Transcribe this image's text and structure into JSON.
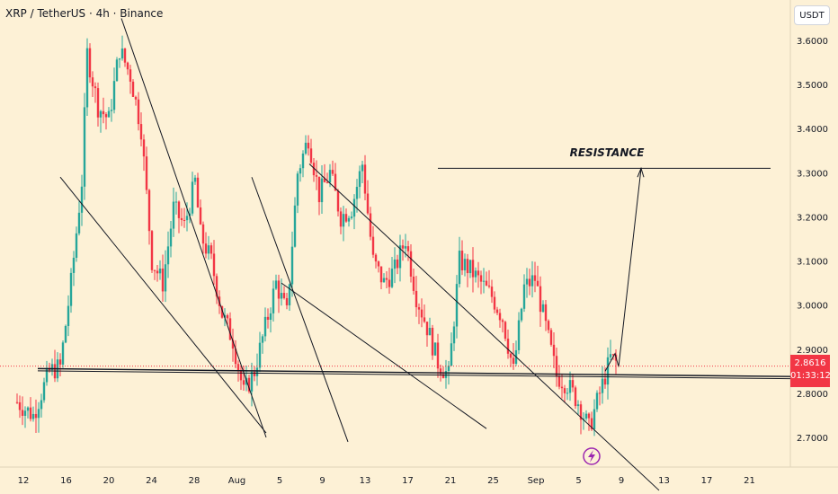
{
  "header": {
    "symbol_title": "XRP / TetherUS · 4h · Binance",
    "currency_button": "USDT"
  },
  "price_tag": {
    "price": "2.8616",
    "countdown": "01:33:12"
  },
  "colors": {
    "background": "#fdf1d6",
    "bull": "#26a69a",
    "bear": "#f23645",
    "line": "#131722"
  },
  "chart_data": {
    "type": "candlestick",
    "title": "XRP / TetherUS · 4h · Binance",
    "y_axis": {
      "unit": "USDT",
      "ticks": [
        "3.6000",
        "3.5000",
        "3.4000",
        "3.3000",
        "3.2000",
        "3.1000",
        "3.0000",
        "2.9000",
        "2.8000",
        "2.7000"
      ],
      "ylim": [
        2.66,
        3.67
      ]
    },
    "x_axis": {
      "ticks": [
        "12",
        "16",
        "20",
        "24",
        "28",
        "Aug",
        "5",
        "9",
        "13",
        "17",
        "21",
        "25",
        "Sep",
        "5",
        "9",
        "13",
        "17",
        "21"
      ]
    },
    "ohlc_path": [
      [
        0,
        2.78
      ],
      [
        1.5,
        2.75
      ],
      [
        3,
        2.85
      ],
      [
        4,
        2.86
      ],
      [
        5,
        3.05
      ],
      [
        6,
        3.28
      ],
      [
        6.5,
        3.57
      ],
      [
        7.5,
        3.45
      ],
      [
        8.5,
        3.42
      ],
      [
        9.5,
        3.58
      ],
      [
        10.5,
        3.52
      ],
      [
        11.5,
        3.4
      ],
      [
        12.5,
        3.1
      ],
      [
        13.5,
        3.05
      ],
      [
        14.5,
        3.22
      ],
      [
        15.5,
        3.18
      ],
      [
        16.5,
        3.28
      ],
      [
        17,
        3.16
      ],
      [
        18,
        3.1
      ],
      [
        19,
        2.98
      ],
      [
        20,
        2.92
      ],
      [
        21,
        2.8
      ],
      [
        22,
        2.85
      ],
      [
        23,
        2.95
      ],
      [
        24,
        3.05
      ],
      [
        25,
        2.98
      ],
      [
        26,
        3.3
      ],
      [
        27,
        3.38
      ],
      [
        28,
        3.25
      ],
      [
        29,
        3.3
      ],
      [
        30,
        3.2
      ],
      [
        31,
        3.22
      ],
      [
        32,
        3.32
      ],
      [
        33,
        3.1
      ],
      [
        34,
        3.05
      ],
      [
        35,
        3.08
      ],
      [
        36,
        3.15
      ],
      [
        37,
        3.02
      ],
      [
        38,
        2.95
      ],
      [
        39,
        2.87
      ],
      [
        40,
        2.84
      ],
      [
        41,
        3.1
      ],
      [
        42,
        3.08
      ],
      [
        43,
        3.05
      ],
      [
        44,
        3.02
      ],
      [
        45,
        2.97
      ],
      [
        46,
        2.85
      ],
      [
        47,
        3.04
      ],
      [
        48,
        3.06
      ],
      [
        49,
        2.95
      ],
      [
        50,
        2.84
      ],
      [
        51,
        2.82
      ],
      [
        52,
        2.78
      ],
      [
        53,
        2.72
      ],
      [
        54,
        2.8
      ],
      [
        55,
        2.88
      ],
      [
        55.5,
        2.87
      ]
    ],
    "current_price": 2.8616,
    "annotations": [
      "RESISTANCE"
    ],
    "resistance_level": 3.31,
    "support_level": 2.85,
    "grid": false
  }
}
